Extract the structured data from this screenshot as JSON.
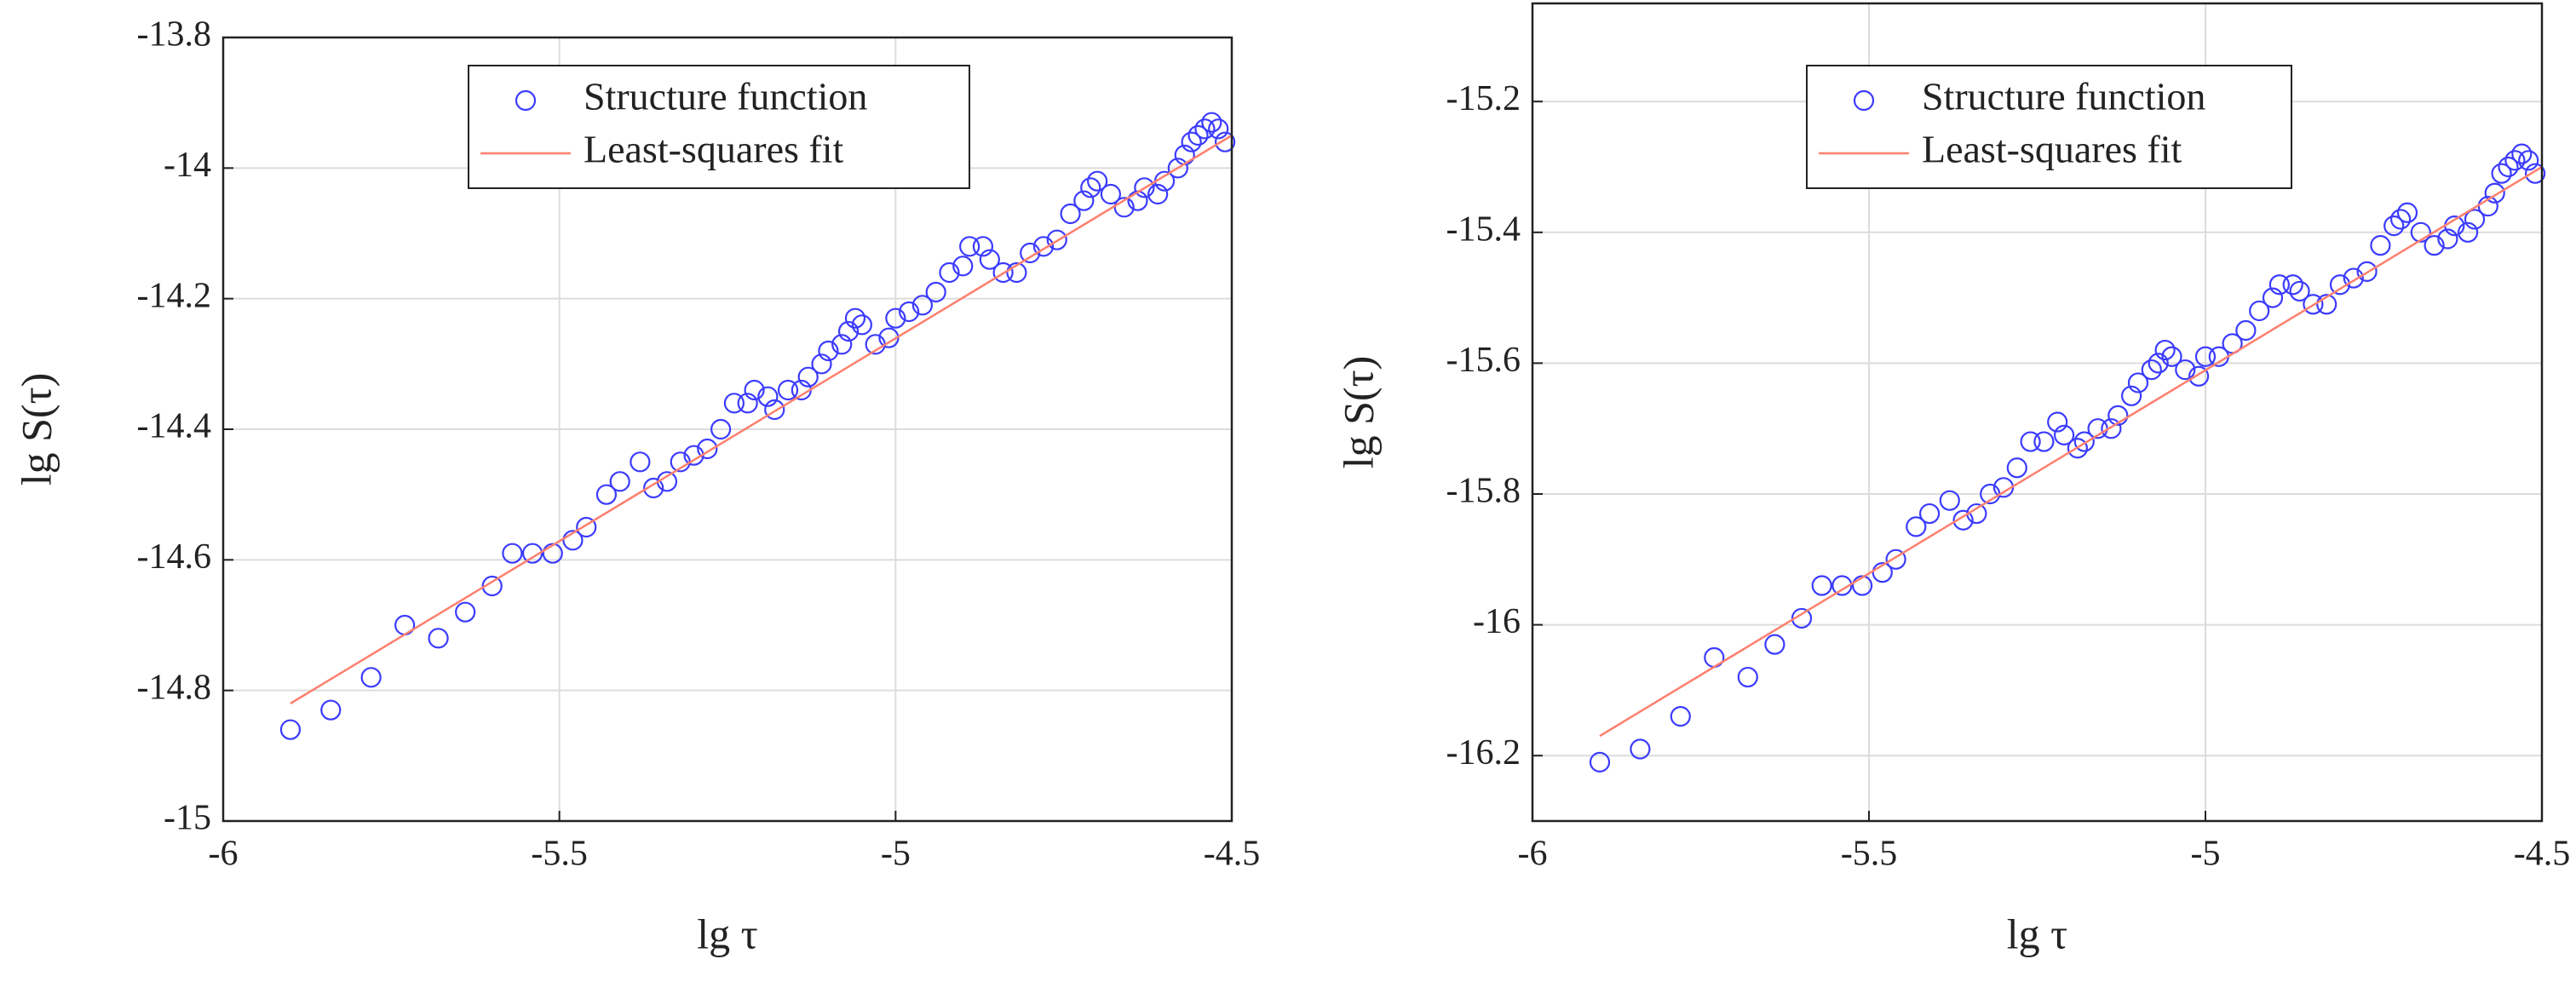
{
  "chart_data": [
    {
      "type": "scatter",
      "xlabel": "lg τ",
      "ylabel": "lg S(τ)",
      "xlim": [
        -6,
        -4.5
      ],
      "ylim": [
        -15,
        -13.8
      ],
      "xticks": [
        -6,
        -5.5,
        -5,
        -4.5
      ],
      "yticks": [
        -15,
        -14.8,
        -14.6,
        -14.4,
        -14.2,
        -14,
        -13.8
      ],
      "grid": true,
      "legend": "upper center",
      "series": [
        {
          "name": "Structure function",
          "color": "#3b3bff",
          "mode": "markers",
          "x": [
            -5.9,
            -5.84,
            -5.78,
            -5.73,
            -5.68,
            -5.64,
            -5.6,
            -5.57,
            -5.54,
            -5.51,
            -5.48,
            -5.46,
            -5.43,
            -5.41,
            -5.38,
            -5.36,
            -5.34,
            -5.32,
            -5.3,
            -5.28,
            -5.26,
            -5.24,
            -5.22,
            -5.21,
            -5.19,
            -5.18,
            -5.16,
            -5.14,
            -5.13,
            -5.11,
            -5.1,
            -5.08,
            -5.07,
            -5.06,
            -5.05,
            -5.03,
            -5.01,
            -5,
            -4.98,
            -4.96,
            -4.94,
            -4.92,
            -4.9,
            -4.89,
            -4.87,
            -4.86,
            -4.84,
            -4.82,
            -4.8,
            -4.78,
            -4.76,
            -4.74,
            -4.72,
            -4.71,
            -4.7,
            -4.68,
            -4.66,
            -4.64,
            -4.63,
            -4.61,
            -4.6,
            -4.58,
            -4.57,
            -4.56,
            -4.55,
            -4.54,
            -4.53,
            -4.52,
            -4.51
          ],
          "values": [
            -14.86,
            -14.83,
            -14.78,
            -14.7,
            -14.72,
            -14.68,
            -14.64,
            -14.59,
            -14.59,
            -14.59,
            -14.57,
            -14.55,
            -14.5,
            -14.48,
            -14.45,
            -14.49,
            -14.48,
            -14.45,
            -14.44,
            -14.43,
            -14.4,
            -14.36,
            -14.36,
            -14.34,
            -14.35,
            -14.37,
            -14.34,
            -14.34,
            -14.32,
            -14.3,
            -14.28,
            -14.27,
            -14.25,
            -14.23,
            -14.24,
            -14.27,
            -14.26,
            -14.23,
            -14.22,
            -14.21,
            -14.19,
            -14.16,
            -14.15,
            -14.12,
            -14.12,
            -14.14,
            -14.16,
            -14.16,
            -14.13,
            -14.12,
            -14.11,
            -14.07,
            -14.05,
            -14.03,
            -14.02,
            -14.04,
            -14.06,
            -14.05,
            -14.03,
            -14.04,
            -14.02,
            -14,
            -13.98,
            -13.96,
            -13.95,
            -13.94,
            -13.93,
            -13.94,
            -13.96
          ]
        },
        {
          "name": "Least-squares fit",
          "color": "#ff7f6e",
          "mode": "line",
          "x": [
            -5.9,
            -4.5
          ],
          "values": [
            -14.82,
            -13.95
          ]
        }
      ]
    },
    {
      "type": "scatter",
      "xlabel": "lg τ",
      "ylabel": "lg S(τ)",
      "xlim": [
        -6,
        -4.5
      ],
      "ylim": [
        -16.3,
        -15.05
      ],
      "xticks": [
        -6,
        -5.5,
        -5,
        -4.5
      ],
      "yticks": [
        -16.2,
        -16,
        -15.8,
        -15.6,
        -15.4,
        -15.2
      ],
      "grid": true,
      "legend": "upper center",
      "series": [
        {
          "name": "Structure function",
          "color": "#3b3bff",
          "mode": "markers",
          "x": [
            -5.9,
            -5.84,
            -5.78,
            -5.73,
            -5.68,
            -5.64,
            -5.6,
            -5.57,
            -5.54,
            -5.51,
            -5.48,
            -5.46,
            -5.43,
            -5.41,
            -5.38,
            -5.36,
            -5.34,
            -5.32,
            -5.3,
            -5.28,
            -5.26,
            -5.24,
            -5.22,
            -5.21,
            -5.19,
            -5.18,
            -5.16,
            -5.14,
            -5.13,
            -5.11,
            -5.1,
            -5.08,
            -5.07,
            -5.06,
            -5.05,
            -5.03,
            -5.01,
            -5,
            -4.98,
            -4.96,
            -4.94,
            -4.92,
            -4.9,
            -4.89,
            -4.87,
            -4.86,
            -4.84,
            -4.82,
            -4.8,
            -4.78,
            -4.76,
            -4.74,
            -4.72,
            -4.71,
            -4.7,
            -4.68,
            -4.66,
            -4.64,
            -4.63,
            -4.61,
            -4.6,
            -4.58,
            -4.57,
            -4.56,
            -4.55,
            -4.54,
            -4.53,
            -4.52,
            -4.51
          ],
          "values": [
            -16.21,
            -16.19,
            -16.14,
            -16.05,
            -16.08,
            -16.03,
            -15.99,
            -15.94,
            -15.94,
            -15.94,
            -15.92,
            -15.9,
            -15.85,
            -15.83,
            -15.81,
            -15.84,
            -15.83,
            -15.8,
            -15.79,
            -15.76,
            -15.72,
            -15.72,
            -15.69,
            -15.71,
            -15.73,
            -15.72,
            -15.7,
            -15.7,
            -15.68,
            -15.65,
            -15.63,
            -15.61,
            -15.6,
            -15.58,
            -15.59,
            -15.61,
            -15.62,
            -15.59,
            -15.59,
            -15.57,
            -15.55,
            -15.52,
            -15.5,
            -15.48,
            -15.48,
            -15.49,
            -15.51,
            -15.51,
            -15.48,
            -15.47,
            -15.46,
            -15.42,
            -15.39,
            -15.38,
            -15.37,
            -15.4,
            -15.42,
            -15.41,
            -15.39,
            -15.4,
            -15.38,
            -15.36,
            -15.34,
            -15.31,
            -15.3,
            -15.29,
            -15.28,
            -15.29,
            -15.31
          ]
        },
        {
          "name": "Least-squares fit",
          "color": "#ff7f6e",
          "mode": "line",
          "x": [
            -5.9,
            -4.5
          ],
          "values": [
            -16.17,
            -15.3
          ]
        }
      ]
    }
  ]
}
